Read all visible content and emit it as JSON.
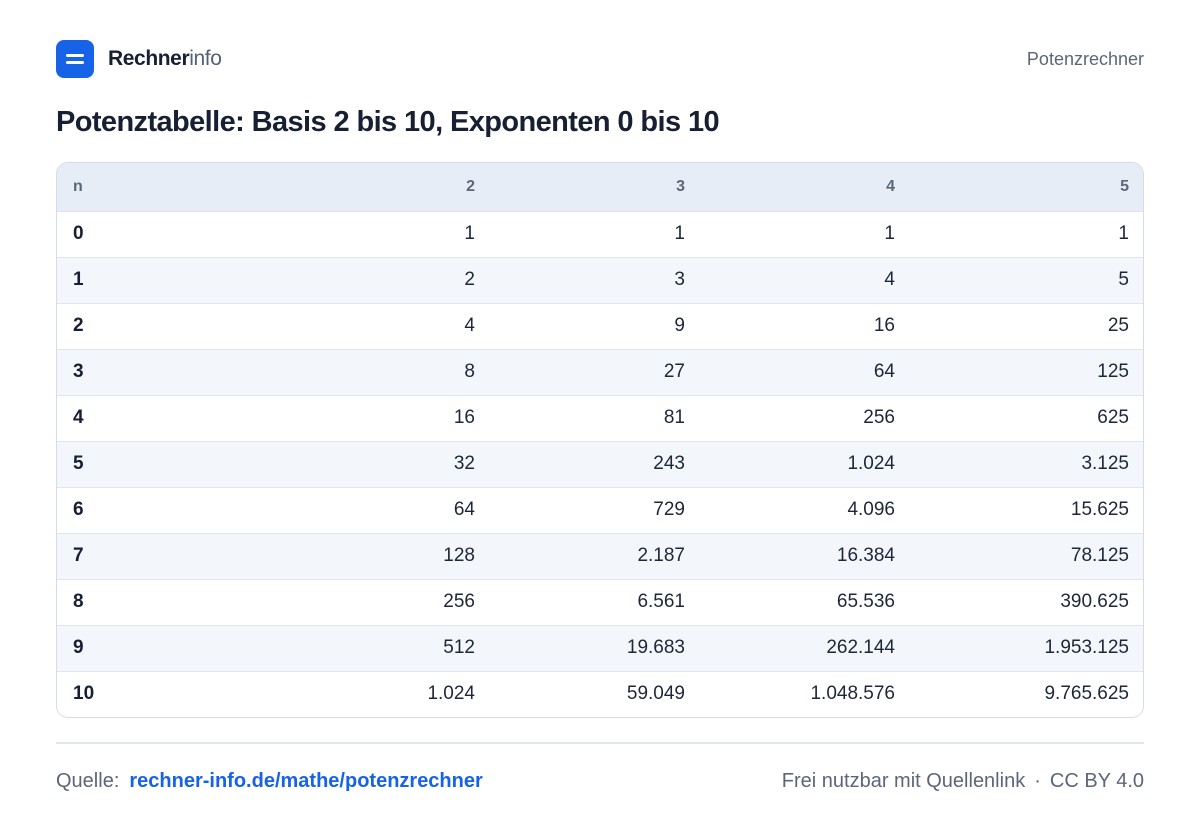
{
  "header": {
    "brand_strong": "Rechner",
    "brand_light": "info",
    "nav_link": "Potenzrechner"
  },
  "title": "Potenztabelle: Basis 2 bis 10, Exponenten 0 bis 10",
  "table": {
    "columns": [
      "n",
      "2",
      "3",
      "4",
      "5"
    ],
    "rows": [
      [
        "0",
        "1",
        "1",
        "1",
        "1"
      ],
      [
        "1",
        "2",
        "3",
        "4",
        "5"
      ],
      [
        "2",
        "4",
        "9",
        "16",
        "25"
      ],
      [
        "3",
        "8",
        "27",
        "64",
        "125"
      ],
      [
        "4",
        "16",
        "81",
        "256",
        "625"
      ],
      [
        "5",
        "32",
        "243",
        "1.024",
        "3.125"
      ],
      [
        "6",
        "64",
        "729",
        "4.096",
        "15.625"
      ],
      [
        "7",
        "128",
        "2.187",
        "16.384",
        "78.125"
      ],
      [
        "8",
        "256",
        "6.561",
        "65.536",
        "390.625"
      ],
      [
        "9",
        "512",
        "19.683",
        "262.144",
        "1.953.125"
      ],
      [
        "10",
        "1.024",
        "59.049",
        "1.048.576",
        "9.765.625"
      ]
    ]
  },
  "footer": {
    "source_label": "Quelle:",
    "source_link": "rechner-info.de/mathe/potenzrechner",
    "usage_note": "Frei nutzbar mit Quellenlink",
    "separator": "·",
    "license": "CC BY 4.0"
  },
  "colors": {
    "accent": "#1663e8",
    "header_row_bg": "#e6edf6",
    "striped_row_bg": "#f3f6fa"
  }
}
